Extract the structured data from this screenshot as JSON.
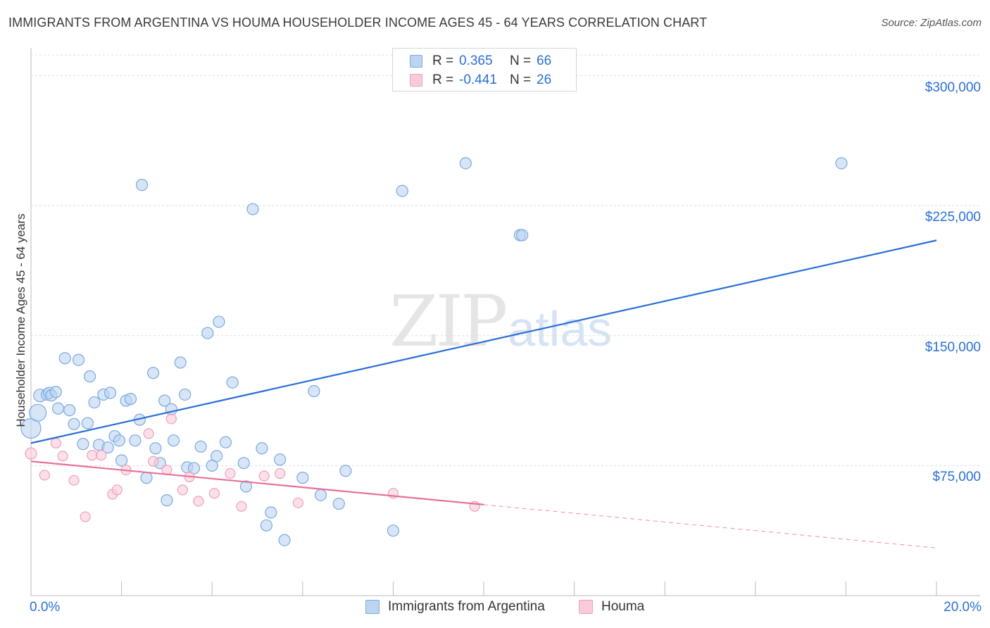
{
  "chart_data": {
    "type": "scatter",
    "title": "IMMIGRANTS FROM ARGENTINA VS HOUMA HOUSEHOLDER INCOME AGES 45 - 64 YEARS CORRELATION CHART",
    "source": "Source: ZipAtlas.com",
    "watermark": {
      "main": "ZIP",
      "secondary": "atlas"
    },
    "xlabel": "",
    "ylabel": "Householder Income Ages 45 - 64 years",
    "xlim": [
      0,
      20
    ],
    "ylim": [
      0,
      312000
    ],
    "x_tick_labels": [
      {
        "value": 0,
        "label": "0.0%"
      },
      {
        "value": 20,
        "label": "20.0%"
      }
    ],
    "y_ticks": [
      {
        "value": 75000,
        "label": "$75,000"
      },
      {
        "value": 150000,
        "label": "$150,000"
      },
      {
        "value": 225000,
        "label": "$225,000"
      },
      {
        "value": 300000,
        "label": "$300,000"
      }
    ],
    "grid": true,
    "legend_position": "top-center",
    "series": [
      {
        "name": "Immigrants from Argentina",
        "color": "#7aaae0",
        "fill": "#bcd4f2",
        "r_label": "R =",
        "r_value": "0.365",
        "n_label": "N =",
        "n_value": "66",
        "trend": {
          "x0": 0,
          "y0": 88000,
          "x1": 20,
          "y1": 205000,
          "color": "#2a6fd6"
        },
        "points": [
          [
            0.0,
            96500
          ],
          [
            0.15,
            105500
          ],
          [
            0.2,
            115500
          ],
          [
            0.35,
            116000
          ],
          [
            0.4,
            117000
          ],
          [
            0.45,
            115500
          ],
          [
            0.55,
            117500
          ],
          [
            0.6,
            108000
          ],
          [
            0.75,
            137000
          ],
          [
            0.85,
            107000
          ],
          [
            0.95,
            99000
          ],
          [
            1.05,
            136000
          ],
          [
            1.15,
            87500
          ],
          [
            1.25,
            99500
          ],
          [
            1.3,
            126500
          ],
          [
            1.4,
            111500
          ],
          [
            1.5,
            87000
          ],
          [
            1.6,
            116000
          ],
          [
            1.7,
            85500
          ],
          [
            1.75,
            117000
          ],
          [
            1.85,
            92000
          ],
          [
            1.95,
            89500
          ],
          [
            2.0,
            78000
          ],
          [
            2.1,
            112500
          ],
          [
            2.2,
            113500
          ],
          [
            2.3,
            89500
          ],
          [
            2.4,
            101500
          ],
          [
            2.45,
            237000
          ],
          [
            2.55,
            68000
          ],
          [
            2.7,
            128500
          ],
          [
            2.75,
            85000
          ],
          [
            2.85,
            76500
          ],
          [
            2.95,
            112500
          ],
          [
            3.0,
            55000
          ],
          [
            3.1,
            107500
          ],
          [
            3.15,
            89500
          ],
          [
            3.3,
            134500
          ],
          [
            3.4,
            116000
          ],
          [
            3.45,
            74000
          ],
          [
            3.6,
            73500
          ],
          [
            3.75,
            86000
          ],
          [
            3.9,
            151500
          ],
          [
            4.0,
            75000
          ],
          [
            4.1,
            80500
          ],
          [
            4.15,
            158000
          ],
          [
            4.3,
            88500
          ],
          [
            4.45,
            123000
          ],
          [
            4.7,
            76500
          ],
          [
            4.75,
            63000
          ],
          [
            4.9,
            223000
          ],
          [
            5.1,
            85000
          ],
          [
            5.2,
            40500
          ],
          [
            5.3,
            48000
          ],
          [
            5.5,
            78500
          ],
          [
            5.6,
            32000
          ],
          [
            6.0,
            68000
          ],
          [
            6.25,
            118000
          ],
          [
            6.4,
            58000
          ],
          [
            6.8,
            53000
          ],
          [
            6.95,
            72000
          ],
          [
            8.0,
            37500
          ],
          [
            8.2,
            233500
          ],
          [
            9.6,
            249500
          ],
          [
            10.8,
            208000
          ],
          [
            10.85,
            208000
          ],
          [
            17.9,
            249500
          ]
        ],
        "sizes": [
          26,
          22,
          16,
          14,
          14,
          14,
          14,
          14,
          14,
          14,
          14,
          14,
          14,
          14,
          14,
          14,
          14,
          14,
          14,
          14,
          14,
          14,
          14,
          14,
          14,
          14,
          14,
          14,
          14,
          14,
          14,
          14,
          14,
          14,
          14,
          14,
          14,
          14,
          14,
          14,
          14,
          14,
          14,
          14,
          14,
          14,
          14,
          14,
          14,
          14,
          14,
          14,
          14,
          14,
          14,
          14,
          14,
          14,
          14,
          14,
          14,
          14,
          14,
          14,
          14,
          14
        ]
      },
      {
        "name": "Houma",
        "color": "#f0a0ba",
        "fill": "#f8cbd9",
        "r_label": "R =",
        "r_value": "-0.441",
        "n_label": "N =",
        "n_value": "26",
        "trend": {
          "x0": 0,
          "y0": 77500,
          "x1": 10,
          "y1": 52500,
          "color": "#e8709a"
        },
        "trend_dashed": {
          "x0": 10,
          "y0": 52500,
          "x1": 20,
          "y1": 27500
        },
        "points": [
          [
            0.0,
            82000
          ],
          [
            0.3,
            69500
          ],
          [
            0.55,
            88000
          ],
          [
            0.7,
            80500
          ],
          [
            0.95,
            66500
          ],
          [
            1.2,
            45500
          ],
          [
            1.35,
            81000
          ],
          [
            1.55,
            81000
          ],
          [
            1.8,
            58500
          ],
          [
            1.9,
            61000
          ],
          [
            2.1,
            72500
          ],
          [
            2.6,
            93500
          ],
          [
            2.7,
            77500
          ],
          [
            3.0,
            72500
          ],
          [
            3.1,
            102000
          ],
          [
            3.35,
            61000
          ],
          [
            3.5,
            68500
          ],
          [
            3.7,
            54500
          ],
          [
            4.05,
            59000
          ],
          [
            4.4,
            70500
          ],
          [
            4.65,
            51500
          ],
          [
            5.15,
            69000
          ],
          [
            5.5,
            70500
          ],
          [
            5.9,
            53500
          ],
          [
            8.0,
            59000
          ],
          [
            9.8,
            51500
          ]
        ],
        "sizes": [
          14,
          12,
          12,
          12,
          12,
          12,
          12,
          12,
          12,
          12,
          12,
          12,
          12,
          12,
          12,
          12,
          12,
          12,
          12,
          12,
          12,
          12,
          12,
          12,
          12,
          12
        ]
      }
    ]
  }
}
